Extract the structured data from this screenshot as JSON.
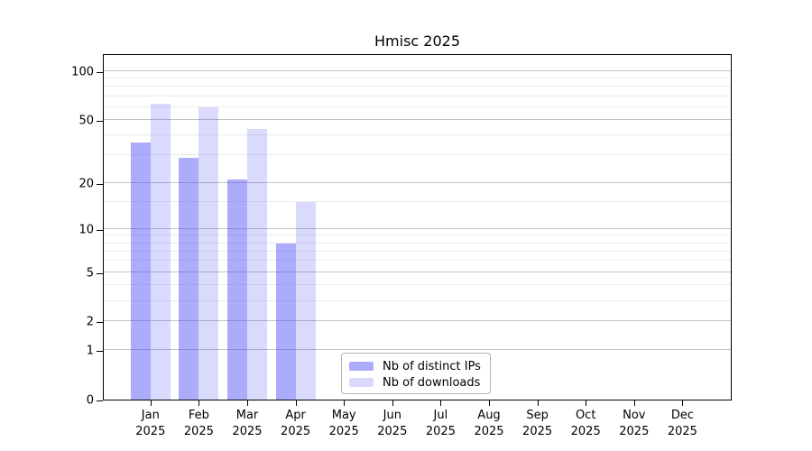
{
  "chart_data": {
    "type": "bar",
    "title": "Hmisc 2025",
    "categories": [
      "Jan",
      "Feb",
      "Mar",
      "Apr",
      "May",
      "Jun",
      "Jul",
      "Aug",
      "Sep",
      "Oct",
      "Nov",
      "Dec"
    ],
    "x_tick_second_line": "2025",
    "series": [
      {
        "name": "Nb of distinct IPs",
        "key": "distinct-ips",
        "color_hex": "#acacfa",
        "fill_rgba": "rgba(70,70,245,0.45)",
        "values": [
          36,
          29,
          21,
          8,
          null,
          null,
          null,
          null,
          null,
          null,
          null,
          null
        ]
      },
      {
        "name": "Nb of downloads",
        "key": "downloads",
        "color_hex": "#dadaf9",
        "fill_rgba": "rgba(70,70,245,0.2)",
        "values": [
          63,
          60,
          44,
          15,
          null,
          null,
          null,
          null,
          null,
          null,
          null,
          null
        ]
      }
    ],
    "y_axis": {
      "scale": "log10(1+x)",
      "ticks": [
        0,
        1,
        2,
        5,
        10,
        20,
        50,
        100
      ],
      "minor_gridlines": [
        3,
        4,
        6,
        7,
        8,
        9,
        15,
        30,
        40,
        60,
        70,
        80,
        90
      ],
      "ylim": [
        0,
        127
      ]
    },
    "xlabel": "",
    "ylabel": "",
    "grid": true,
    "legend_position": "inside-bottom-center",
    "colors": {
      "major_grid": "#c3c3c3",
      "minor_grid": "#ebebeb",
      "axis": "#000000",
      "background": "#ffffff",
      "legend_border": "#b3b3b3"
    }
  }
}
